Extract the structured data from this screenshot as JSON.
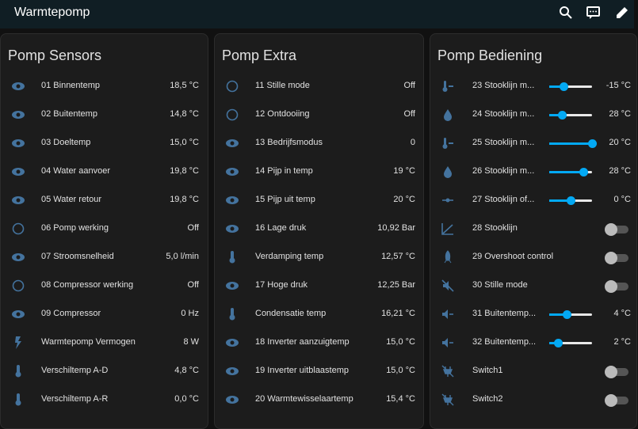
{
  "header": {
    "title": "Warmtepomp"
  },
  "cards": [
    {
      "title": "Pomp Sensors",
      "rows": [
        {
          "name": "01 Binnentemp",
          "state": "18,5 °C"
        },
        {
          "name": "02 Buitentemp",
          "state": "14,8 °C"
        },
        {
          "name": "03 Doeltemp",
          "state": "15,0 °C"
        },
        {
          "name": "04 Water aanvoer",
          "state": "19,8 °C"
        },
        {
          "name": "05 Water retour",
          "state": "19,8 °C"
        },
        {
          "name": "06 Pomp werking",
          "state": "Off"
        },
        {
          "name": "07 Stroomsnelheid",
          "state": "5,0 l/min"
        },
        {
          "name": "08 Compressor werking",
          "state": "Off"
        },
        {
          "name": "09 Compressor",
          "state": "0 Hz"
        },
        {
          "name": "Warmtepomp Vermogen",
          "state": "8 W"
        },
        {
          "name": "Verschiltemp A-D",
          "state": "4,8 °C"
        },
        {
          "name": "Verschiltemp A-R",
          "state": "0,0 °C"
        }
      ]
    },
    {
      "title": "Pomp Extra",
      "rows": [
        {
          "name": "11 Stille mode",
          "state": "Off"
        },
        {
          "name": "12 Ontdooiing",
          "state": "Off"
        },
        {
          "name": "13 Bedrijfsmodus",
          "state": "0"
        },
        {
          "name": "14 Pijp in temp",
          "state": "19 °C"
        },
        {
          "name": "15 Pijp uit temp",
          "state": "20 °C"
        },
        {
          "name": "16 Lage druk",
          "state": "10,92 Bar"
        },
        {
          "name": "Verdamping temp",
          "state": "12,57 °C"
        },
        {
          "name": "17 Hoge druk",
          "state": "12,25 Bar"
        },
        {
          "name": "Condensatie temp",
          "state": "16,21 °C"
        },
        {
          "name": "18 Inverter aanzuigtemp",
          "state": "15,0 °C"
        },
        {
          "name": "19 Inverter uitblaastemp",
          "state": "15,0 °C"
        },
        {
          "name": "20 Warmtewisselaartemp",
          "state": "15,4 °C"
        }
      ]
    },
    {
      "title": "Pomp Bediening",
      "rows": [
        {
          "name": "23 Stooklijn m...",
          "state": "-15 °C"
        },
        {
          "name": "24 Stooklijn m...",
          "state": "28 °C"
        },
        {
          "name": "25 Stooklijn m...",
          "state": "20 °C"
        },
        {
          "name": "26 Stooklijn m...",
          "state": "28 °C"
        },
        {
          "name": "27 Stooklijn of...",
          "state": "0 °C"
        },
        {
          "name": "28 Stooklijn"
        },
        {
          "name": "29 Overshoot control"
        },
        {
          "name": "30 Stille mode"
        },
        {
          "name": "31 Buitentemp...",
          "state": "4 °C"
        },
        {
          "name": "32 Buitentemp...",
          "state": "2 °C"
        },
        {
          "name": "Switch1"
        },
        {
          "name": "Switch2"
        }
      ]
    }
  ]
}
